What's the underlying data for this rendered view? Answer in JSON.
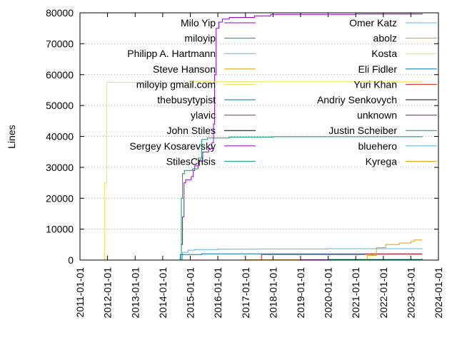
{
  "chart_data": {
    "type": "line",
    "title": "",
    "xlabel": "",
    "ylabel": "Lines",
    "ylim": [
      0,
      80000
    ],
    "xlim": [
      "2011-01-01",
      "2024-01-01"
    ],
    "y_ticks": [
      "0",
      "10000",
      "20000",
      "30000",
      "40000",
      "50000",
      "60000",
      "70000",
      "80000"
    ],
    "x_ticks": [
      "2011-01-01",
      "2012-01-01",
      "2013-01-01",
      "2014-01-01",
      "2015-01-01",
      "2016-01-01",
      "2017-01-01",
      "2018-01-01",
      "2019-01-01",
      "2020-01-01",
      "2021-01-01",
      "2022-01-01",
      "2023-01-01",
      "2024-01-01"
    ],
    "grid": "horizontal dotted",
    "legend_placement": "top, two columns",
    "series": [
      {
        "name": "Milo Yip",
        "color": "#9400d3",
        "points": [
          [
            "2014-08-25",
            0
          ],
          [
            "2014-09-05",
            5000
          ],
          [
            "2014-09-20",
            14000
          ],
          [
            "2014-10-10",
            25000
          ],
          [
            "2014-11-01",
            26000
          ],
          [
            "2015-01-15",
            27000
          ],
          [
            "2015-02-10",
            29000
          ],
          [
            "2015-03-01",
            30500
          ],
          [
            "2015-05-01",
            32000
          ],
          [
            "2015-06-15",
            35000
          ],
          [
            "2015-09-01",
            36000
          ],
          [
            "2015-10-15",
            38000
          ],
          [
            "2015-11-05",
            44000
          ],
          [
            "2015-11-20",
            60000
          ],
          [
            "2015-12-10",
            75000
          ],
          [
            "2016-01-15",
            77000
          ],
          [
            "2016-03-01",
            78000
          ],
          [
            "2016-06-01",
            78500
          ],
          [
            "2017-05-01",
            79000
          ],
          [
            "2017-12-01",
            79500
          ],
          [
            "2021-01-01",
            79600
          ],
          [
            "2023-06-01",
            79700
          ]
        ]
      },
      {
        "name": "miloyip",
        "color": "#009e73",
        "points": [
          [
            "2014-08-25",
            0
          ],
          [
            "2014-09-05",
            20000
          ],
          [
            "2014-09-20",
            28000
          ],
          [
            "2014-10-15",
            29000
          ],
          [
            "2015-02-01",
            29500
          ],
          [
            "2015-04-15",
            33000
          ],
          [
            "2015-06-01",
            39000
          ],
          [
            "2015-08-15",
            39500
          ],
          [
            "2016-06-01",
            39800
          ],
          [
            "2018-01-01",
            39900
          ],
          [
            "2023-06-01",
            40000
          ]
        ]
      },
      {
        "name": "Philipp A. Hartmann",
        "color": "#56b4e9",
        "points": [
          [
            "2014-09-01",
            0
          ],
          [
            "2014-09-20",
            2500
          ],
          [
            "2014-12-01",
            3200
          ],
          [
            "2015-03-01",
            3400
          ],
          [
            "2016-01-01",
            3500
          ],
          [
            "2017-06-01",
            3600
          ],
          [
            "2020-01-01",
            3700
          ],
          [
            "2023-06-01",
            3800
          ]
        ]
      },
      {
        "name": "Steve Hanson",
        "color": "#e69f00",
        "points": [
          [
            "2016-01-01",
            0
          ],
          [
            "2017-01-01",
            100
          ],
          [
            "2020-01-01",
            200
          ],
          [
            "2023-06-01",
            300
          ]
        ]
      },
      {
        "name": "miloyip gmail.com",
        "color": "#f0e442",
        "points": [
          [
            "2011-11-15",
            0
          ],
          [
            "2011-11-25",
            25000
          ],
          [
            "2011-12-20",
            57500
          ],
          [
            "2015-01-01",
            57700
          ],
          [
            "2023-06-01",
            57800
          ]
        ]
      },
      {
        "name": "thebusytypist",
        "color": "#0072b2",
        "points": [
          [
            "2014-08-01",
            0
          ],
          [
            "2014-08-20",
            1800
          ],
          [
            "2015-06-01",
            2000
          ],
          [
            "2023-06-01",
            2000
          ]
        ]
      },
      {
        "name": "ylavic",
        "color": "#e51e10",
        "points": [
          [
            "2017-06-01",
            0
          ],
          [
            "2017-08-01",
            1800
          ],
          [
            "2021-05-01",
            1900
          ],
          [
            "2023-06-01",
            1900
          ]
        ]
      },
      {
        "name": "John Stiles",
        "color": "#000000",
        "points": [
          [
            "2016-06-01",
            0
          ],
          [
            "2020-01-01",
            100
          ],
          [
            "2023-06-01",
            100
          ]
        ]
      },
      {
        "name": "Sergey Kosarevsky",
        "color": "#9400d3",
        "points": [
          [
            "2015-01-01",
            0
          ],
          [
            "2019-01-01",
            100
          ],
          [
            "2023-06-01",
            150
          ]
        ]
      },
      {
        "name": "StilesCrisis",
        "color": "#009e73",
        "points": [
          [
            "2016-06-01",
            0
          ],
          [
            "2020-01-01",
            200
          ],
          [
            "2023-06-01",
            300
          ]
        ]
      },
      {
        "name": "Omer Katz",
        "color": "#56b4e9",
        "points": [
          [
            "2015-06-01",
            0
          ],
          [
            "2023-06-01",
            150
          ]
        ]
      },
      {
        "name": "abolz",
        "color": "#e69f00",
        "points": [
          [
            "2021-05-01",
            0
          ],
          [
            "2021-06-01",
            1500
          ],
          [
            "2021-10-01",
            4000
          ],
          [
            "2022-02-01",
            5000
          ],
          [
            "2022-08-01",
            5500
          ],
          [
            "2023-01-01",
            6000
          ],
          [
            "2023-02-15",
            6500
          ],
          [
            "2023-06-01",
            6500
          ]
        ]
      },
      {
        "name": "Kosta",
        "color": "#f0e442",
        "points": [
          [
            "2019-01-01",
            0
          ],
          [
            "2023-06-01",
            200
          ]
        ]
      },
      {
        "name": "Eli Fidler",
        "color": "#0072b2",
        "points": [
          [
            "2016-06-01",
            0
          ],
          [
            "2023-06-01",
            500
          ]
        ]
      },
      {
        "name": "Yuri Khan",
        "color": "#e51e10",
        "points": [
          [
            "2016-03-01",
            0
          ],
          [
            "2023-06-01",
            200
          ]
        ]
      },
      {
        "name": "Andriy Senkovych",
        "color": "#000000",
        "points": [
          [
            "2015-01-01",
            0
          ],
          [
            "2023-06-01",
            100
          ]
        ]
      },
      {
        "name": "unknown",
        "color": "#9400d3",
        "points": [
          [
            "2016-01-01",
            0
          ],
          [
            "2023-06-01",
            100
          ]
        ]
      },
      {
        "name": "Justin Scheiber",
        "color": "#009e73",
        "points": [
          [
            "2016-06-01",
            0
          ],
          [
            "2023-06-01",
            200
          ]
        ]
      },
      {
        "name": "bluehero",
        "color": "#56b4e9",
        "points": [
          [
            "2016-09-01",
            0
          ],
          [
            "2023-06-01",
            300
          ]
        ]
      },
      {
        "name": "Kyrega",
        "color": "#e69f00",
        "points": [
          [
            "2021-01-01",
            0
          ],
          [
            "2023-06-01",
            300
          ]
        ]
      }
    ]
  }
}
